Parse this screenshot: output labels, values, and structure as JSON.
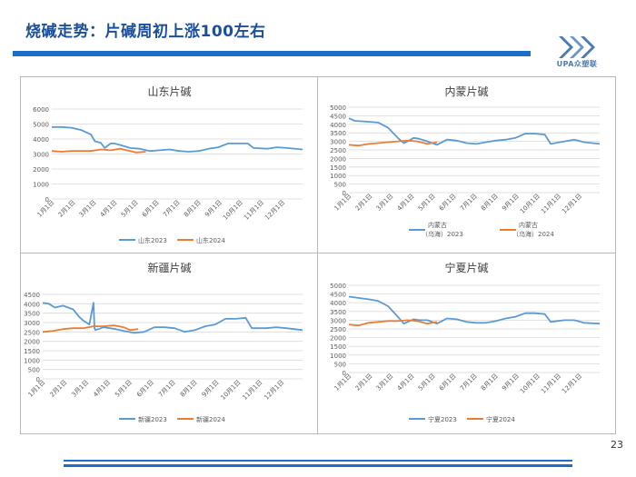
{
  "header": {
    "title": "烧碱走势：片碱周初上涨100左右"
  },
  "logo": {
    "text": "UPA众塑联"
  },
  "page_number": "23",
  "colors": {
    "series2023": "#5b9bd5",
    "series2024": "#ed7d31",
    "accent": "#1b6fc8",
    "grid": "#d9d9d9"
  },
  "chart_data": [
    {
      "type": "line",
      "title": "山东片碱",
      "xlabel": "",
      "ylabel": "",
      "ylim": [
        0,
        6000
      ],
      "yticks": [
        "0",
        "1000",
        "2000",
        "3000",
        "4000",
        "5000",
        "6000"
      ],
      "categories": [
        "1月1日",
        "2月1日",
        "3月1日",
        "4月1日",
        "5月1日",
        "6月1日",
        "7月1日",
        "8月1日",
        "9月1日",
        "10月1日",
        "11月1日",
        "12月1日"
      ],
      "series": [
        {
          "name": "山东2023",
          "x": [
            0,
            0.5,
            1,
            1.5,
            2,
            2.2,
            2.5,
            2.7,
            3,
            3.2,
            3.5,
            4,
            4.5,
            5,
            5.5,
            6,
            6.5,
            7,
            7.5,
            8,
            8.5,
            9,
            9.5,
            10,
            10.3,
            11,
            11.5,
            12,
            12.8
          ],
          "values": [
            4800,
            4800,
            4750,
            4600,
            4300,
            3850,
            3750,
            3400,
            3700,
            3700,
            3600,
            3400,
            3350,
            3200,
            3250,
            3300,
            3200,
            3150,
            3200,
            3350,
            3450,
            3700,
            3700,
            3700,
            3400,
            3350,
            3450,
            3400,
            3300
          ]
        },
        {
          "name": "山东2024",
          "x": [
            0,
            0.5,
            1,
            1.5,
            2,
            2.5,
            3,
            3.5,
            4,
            4.3,
            4.8
          ],
          "values": [
            3200,
            3150,
            3200,
            3200,
            3200,
            3300,
            3250,
            3350,
            3200,
            3100,
            3150
          ]
        }
      ]
    },
    {
      "type": "line",
      "title": "内蒙片碱",
      "xlabel": "",
      "ylabel": "",
      "ylim": [
        0,
        5000
      ],
      "yticks": [
        "0",
        "500",
        "1000",
        "1500",
        "2000",
        "2500",
        "3000",
        "3500",
        "4000",
        "4500",
        "5000"
      ],
      "categories": [
        "1月1日",
        "2月1日",
        "3月1日",
        "4月1日",
        "5月1日",
        "6月1日",
        "7月1日",
        "8月1日",
        "9月1日",
        "10月1日",
        "11月1日",
        "12月1日"
      ],
      "series": [
        {
          "name": "内蒙古（乌海）2023",
          "x": [
            0,
            0.3,
            1,
            1.5,
            2,
            2.5,
            2.8,
            3,
            3.3,
            3.6,
            4,
            4.5,
            5,
            5.5,
            6,
            6.5,
            7,
            7.5,
            8,
            8.5,
            9,
            9.5,
            10,
            10.3,
            11,
            11.5,
            12,
            12.8
          ],
          "values": [
            4350,
            4200,
            4150,
            4100,
            3800,
            3200,
            2900,
            3000,
            3200,
            3150,
            3000,
            2800,
            3100,
            3050,
            2900,
            2850,
            2950,
            3050,
            3100,
            3200,
            3450,
            3450,
            3400,
            2850,
            3000,
            3100,
            2950,
            2850
          ]
        },
        {
          "name": "内蒙古（乌海）2024",
          "x": [
            0,
            0.5,
            1,
            1.5,
            2,
            2.5,
            3,
            3.5,
            4,
            4.5
          ],
          "values": [
            2800,
            2750,
            2850,
            2900,
            2950,
            3000,
            3050,
            3000,
            2850,
            2950
          ]
        }
      ]
    },
    {
      "type": "line",
      "title": "新疆片碱",
      "xlabel": "",
      "ylabel": "",
      "ylim": [
        0,
        4500
      ],
      "yticks": [
        "0",
        "500",
        "1000",
        "1500",
        "2000",
        "2500",
        "3000",
        "3500",
        "4000",
        "4500"
      ],
      "categories": [
        "1月1日",
        "2月1日",
        "3月1日",
        "4月1日",
        "5月1日",
        "6月1日",
        "7月1日",
        "8月1日",
        "9月1日",
        "10月1日",
        "11月1日",
        "12月1日"
      ],
      "series": [
        {
          "name": "新疆2023",
          "x": [
            0,
            0.3,
            0.6,
            1,
            1.5,
            1.8,
            2,
            2.3,
            2.5,
            2.55,
            2.6,
            3,
            3.3,
            3.6,
            4,
            4.5,
            5,
            5.5,
            6,
            6.5,
            7,
            7.5,
            8,
            8.5,
            9,
            9.5,
            10,
            10.3,
            11,
            11.5,
            12,
            12.8
          ],
          "values": [
            4050,
            4000,
            3800,
            3900,
            3700,
            3300,
            3100,
            2900,
            4050,
            2700,
            2600,
            2750,
            2700,
            2650,
            2550,
            2450,
            2500,
            2750,
            2750,
            2700,
            2500,
            2600,
            2800,
            2900,
            3200,
            3200,
            3250,
            2700,
            2700,
            2750,
            2700,
            2600
          ]
        },
        {
          "name": "新疆2024",
          "x": [
            0,
            0.5,
            1,
            1.5,
            2,
            2.5,
            3,
            3.5,
            4,
            4.3,
            4.7
          ],
          "values": [
            2500,
            2550,
            2650,
            2700,
            2700,
            2800,
            2800,
            2850,
            2750,
            2600,
            2650
          ]
        }
      ]
    },
    {
      "type": "line",
      "title": "宁夏片碱",
      "xlabel": "",
      "ylabel": "",
      "ylim": [
        0,
        5000
      ],
      "yticks": [
        "0",
        "500",
        "1000",
        "1500",
        "2000",
        "2500",
        "3000",
        "3500",
        "4000",
        "4500",
        "5000"
      ],
      "categories": [
        "1月1日",
        "2月1日",
        "3月1日",
        "4月1日",
        "5月1日",
        "6月1日",
        "7月1日",
        "8月1日",
        "9月1日",
        "10月1日",
        "11月1日",
        "12月1日"
      ],
      "series": [
        {
          "name": "宁夏2023",
          "x": [
            0,
            0.3,
            1,
            1.5,
            2,
            2.5,
            2.8,
            3,
            3.3,
            3.6,
            4,
            4.5,
            5,
            5.5,
            6,
            6.5,
            7,
            7.5,
            8,
            8.5,
            9,
            9.5,
            10,
            10.3,
            11,
            11.5,
            12,
            12.8
          ],
          "values": [
            4350,
            4300,
            4200,
            4100,
            3800,
            3200,
            2800,
            2900,
            3050,
            3000,
            3000,
            2800,
            3100,
            3050,
            2900,
            2850,
            2850,
            2950,
            3100,
            3200,
            3400,
            3400,
            3350,
            2900,
            3000,
            3000,
            2850,
            2800
          ]
        },
        {
          "name": "宁夏2024",
          "x": [
            0,
            0.5,
            1,
            1.5,
            2,
            2.5,
            3,
            3.5,
            4,
            4.5
          ],
          "values": [
            2750,
            2700,
            2850,
            2900,
            2950,
            2950,
            3000,
            2950,
            2800,
            2900
          ]
        }
      ]
    }
  ]
}
